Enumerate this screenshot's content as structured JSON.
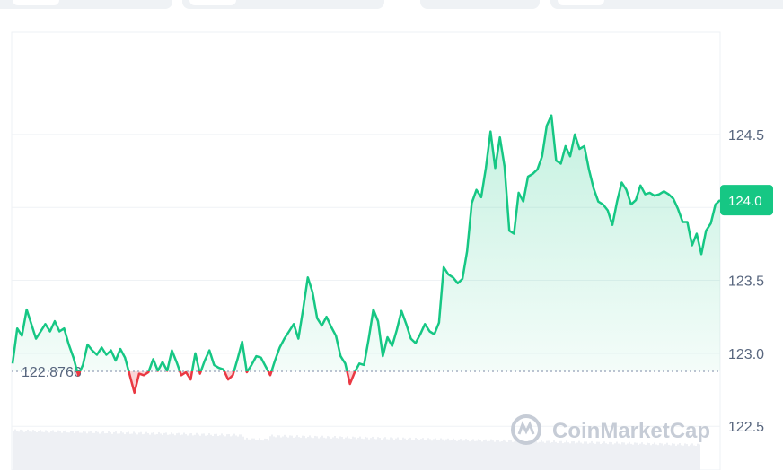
{
  "tabs": [
    {
      "name": "tab-1"
    },
    {
      "name": "tab-2"
    },
    {
      "name": "tab-3"
    },
    {
      "name": "tab-4"
    }
  ],
  "watermark": "CoinMarketCap",
  "colors": {
    "up": "#16c784",
    "down": "#ea3943",
    "grid": "#eff2f5",
    "axis_text": "#58667e"
  },
  "chart_data": {
    "type": "area",
    "reference_value": 122.8766,
    "reference_label": "122.8766",
    "current_value": 124.05,
    "current_label": "124.0",
    "yticks": [
      122.5,
      123.0,
      123.5,
      124.5
    ],
    "ytick_labels": [
      "122.5",
      "123.0",
      "123.5",
      "124.5"
    ],
    "ylim": [
      122.2,
      125.2
    ],
    "grid": true,
    "series": [
      {
        "values": [
          122.93,
          123.17,
          123.12,
          123.3,
          123.2,
          123.1,
          123.15,
          123.2,
          123.15,
          123.22,
          123.15,
          123.17,
          123.06,
          122.97,
          122.85,
          122.92,
          123.06,
          123.02,
          122.99,
          123.04,
          122.99,
          123.02,
          122.95,
          123.03,
          122.97,
          122.85,
          122.73,
          122.86,
          122.85,
          122.87,
          122.96,
          122.88,
          122.94,
          122.88,
          123.02,
          122.94,
          122.85,
          122.87,
          122.82,
          123.0,
          122.86,
          122.95,
          123.02,
          122.92,
          122.9,
          122.89,
          122.82,
          122.85,
          122.96,
          123.08,
          122.87,
          122.92,
          122.98,
          122.97,
          122.91,
          122.85,
          122.95,
          123.04,
          123.1,
          123.15,
          123.2,
          123.1,
          123.3,
          123.52,
          123.42,
          123.24,
          123.19,
          123.25,
          123.18,
          123.12,
          122.98,
          122.93,
          122.79,
          122.87,
          122.93,
          122.92,
          123.1,
          123.3,
          123.22,
          122.98,
          123.11,
          123.05,
          123.16,
          123.29,
          123.2,
          123.1,
          123.07,
          123.13,
          123.2,
          123.15,
          123.13,
          123.21,
          123.59,
          123.54,
          123.52,
          123.48,
          123.51,
          123.7,
          124.03,
          124.12,
          124.07,
          124.27,
          124.52,
          124.27,
          124.48,
          124.28,
          123.84,
          123.82,
          124.1,
          124.04,
          124.21,
          124.23,
          124.26,
          124.35,
          124.56,
          124.63,
          124.32,
          124.3,
          124.42,
          124.35,
          124.5,
          124.4,
          124.42,
          124.26,
          124.13,
          124.04,
          124.02,
          123.98,
          123.88,
          124.04,
          124.17,
          124.12,
          124.02,
          124.05,
          124.15,
          124.09,
          124.1,
          124.08,
          124.09,
          124.11,
          124.09,
          124.06,
          123.99,
          123.9,
          123.9,
          123.74,
          123.82,
          123.68,
          123.84,
          123.89,
          124.02,
          124.05
        ]
      }
    ]
  }
}
